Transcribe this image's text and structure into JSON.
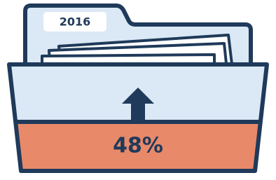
{
  "tab_label": "2016",
  "value_label": "48%"
}
